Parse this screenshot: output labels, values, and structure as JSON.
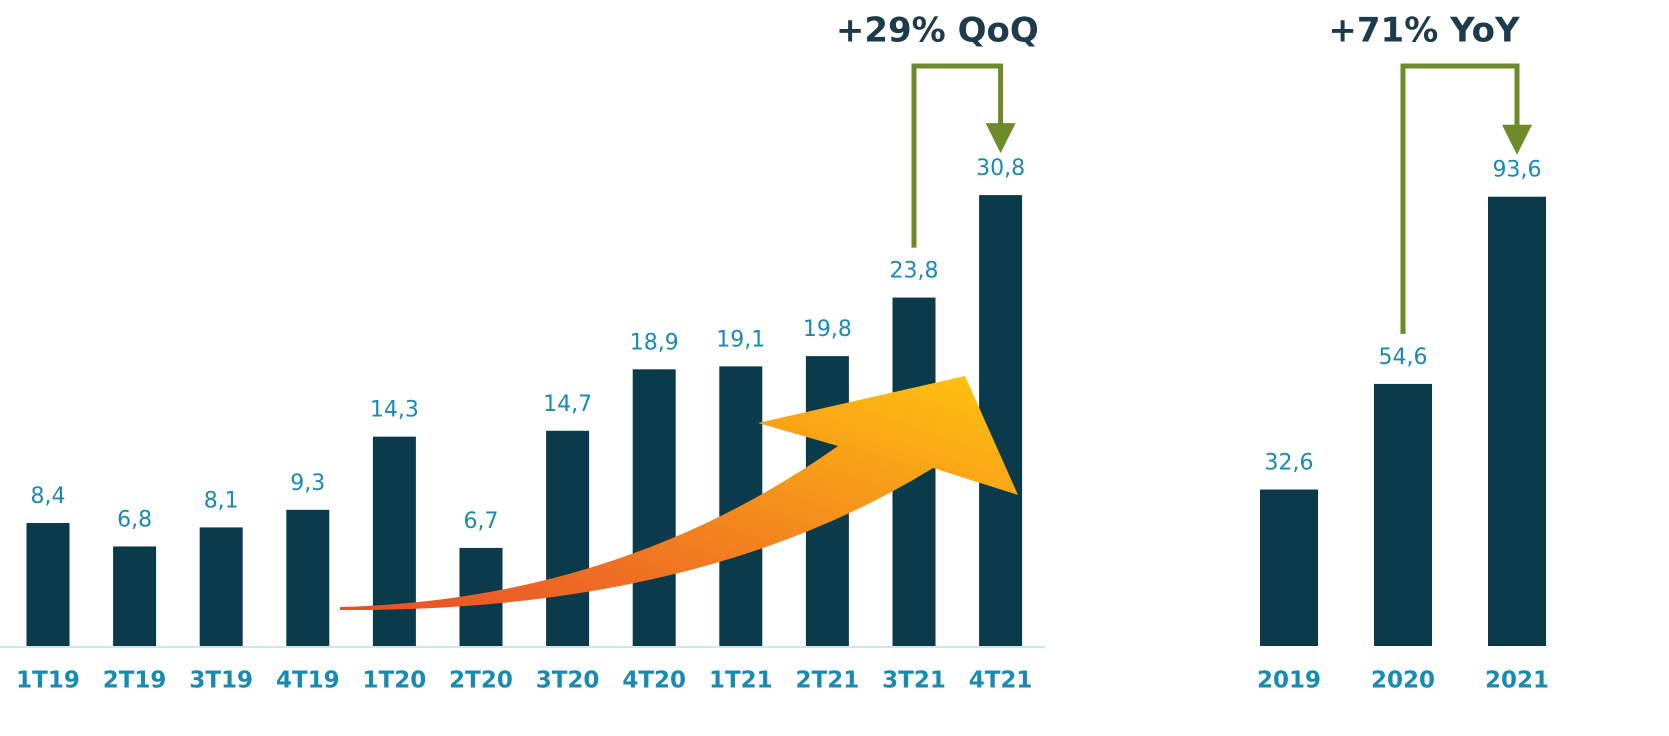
{
  "chart_data": [
    {
      "type": "bar",
      "annotation": "+29% QoQ",
      "categories": [
        "1T19",
        "2T19",
        "3T19",
        "4T19",
        "1T20",
        "2T20",
        "3T20",
        "4T20",
        "1T21",
        "2T21",
        "3T21",
        "4T21"
      ],
      "values": [
        8.4,
        6.8,
        8.1,
        9.3,
        14.3,
        6.7,
        14.7,
        18.9,
        19.1,
        19.8,
        23.8,
        30.8
      ],
      "value_labels": [
        "8,4",
        "6,8",
        "8,1",
        "9,3",
        "14,3",
        "6,7",
        "14,7",
        "18,9",
        "19,1",
        "19,8",
        "23,8",
        "30,8"
      ],
      "color": "#0b3a4a",
      "ylim": [
        0,
        32
      ]
    },
    {
      "type": "bar",
      "annotation": "+71% YoY",
      "categories": [
        "2019",
        "2020",
        "2021"
      ],
      "values": [
        32.6,
        54.6,
        93.6
      ],
      "value_labels": [
        "32,6",
        "54,6",
        "93,6"
      ],
      "color": "#0b3a4a",
      "ylim": [
        0,
        96
      ]
    }
  ]
}
